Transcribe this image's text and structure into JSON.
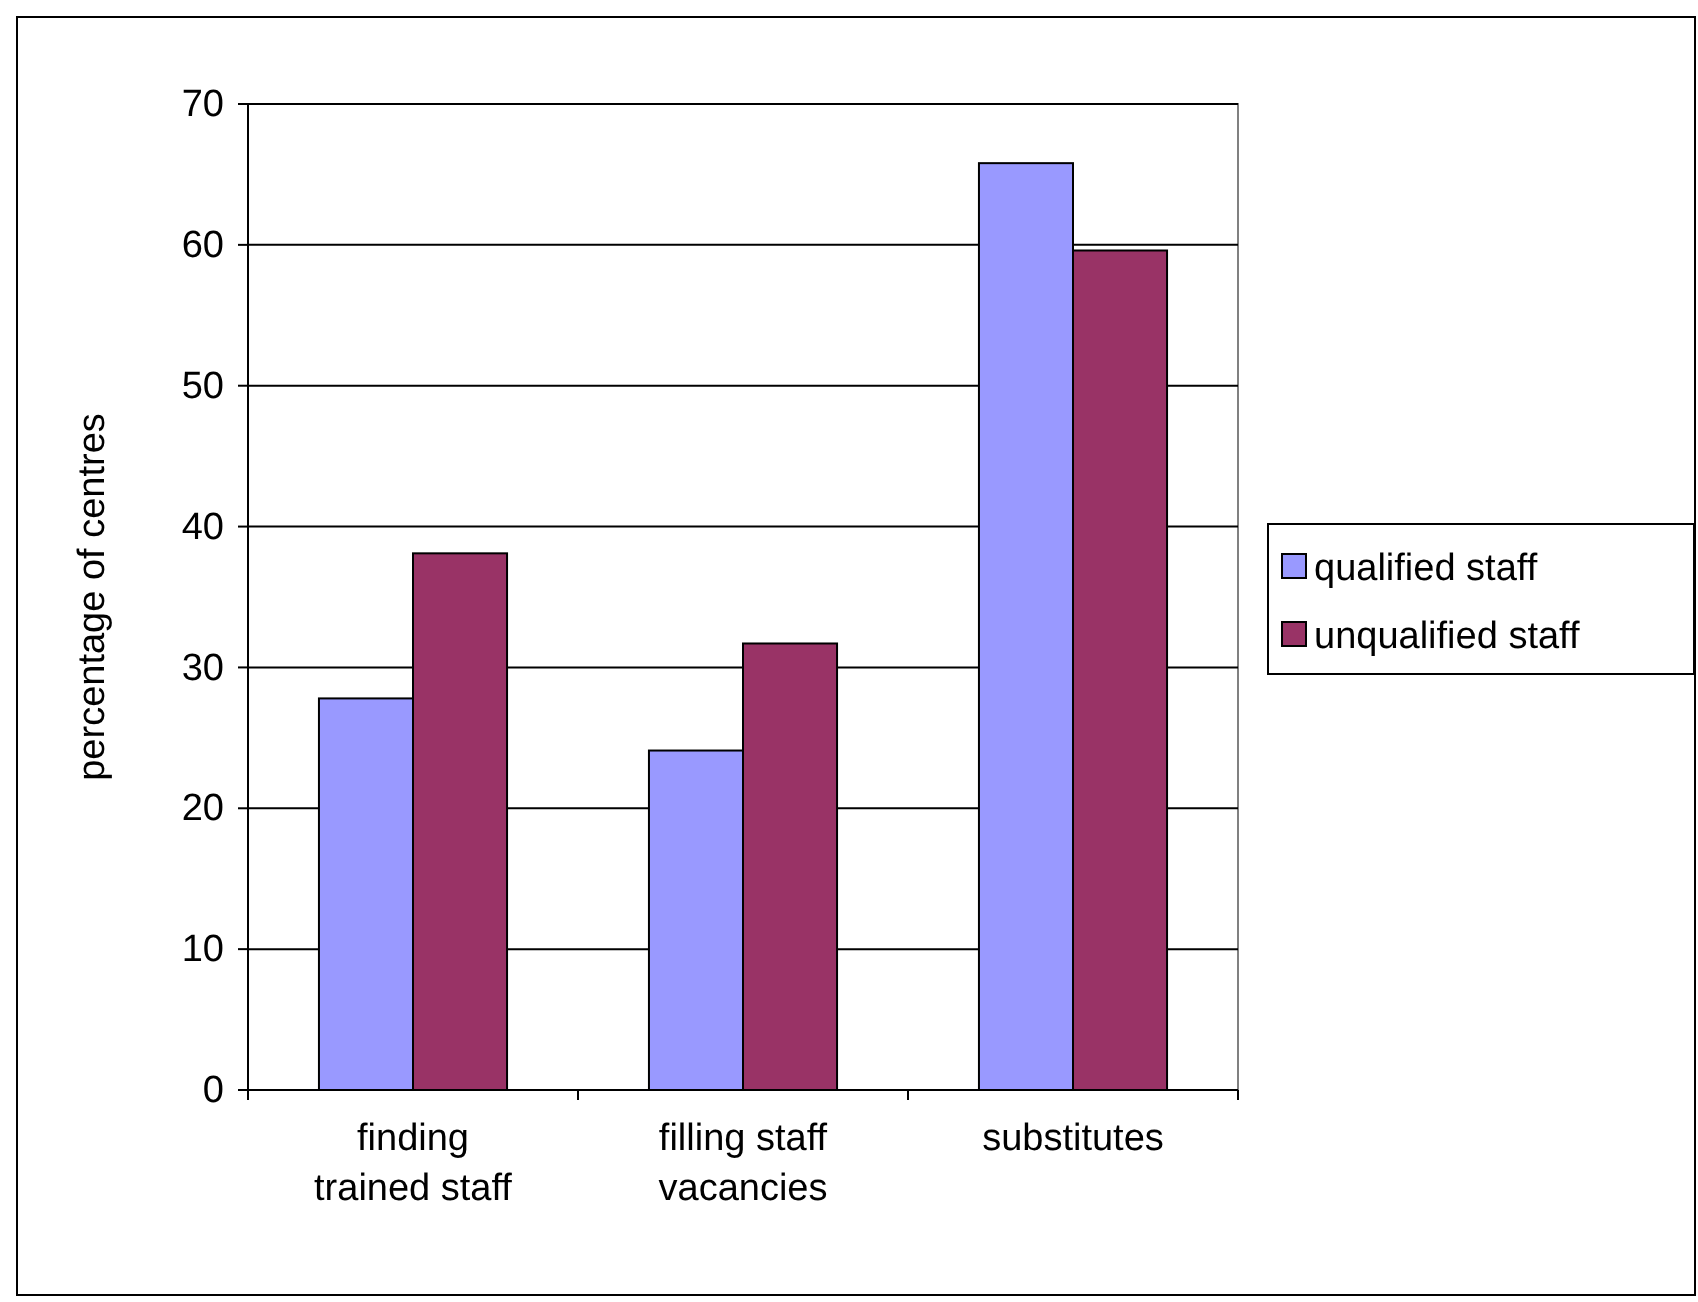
{
  "chart_data": {
    "type": "bar",
    "ylabel": "percentage of centres",
    "categories": [
      "finding trained staff",
      "filling staff vacancies",
      "substitutes"
    ],
    "series": [
      {
        "name": "qualified staff",
        "color": "#9999ff",
        "values": [
          27.8,
          24.1,
          65.8
        ]
      },
      {
        "name": "unqualified staff",
        "color": "#993366",
        "values": [
          38.1,
          31.7,
          59.6
        ]
      }
    ],
    "ylim": [
      0,
      70
    ],
    "yticks": [
      0,
      10,
      20,
      30,
      40,
      50,
      60,
      70
    ],
    "grid": "y",
    "legend": "right"
  }
}
